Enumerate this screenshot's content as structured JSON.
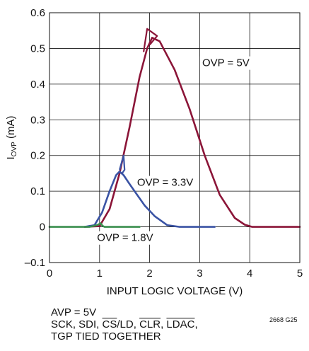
{
  "chart_data": {
    "type": "line",
    "title": "",
    "xlabel": "INPUT LOGIC VOLTAGE (V)",
    "ylabel_main": "I",
    "ylabel_sub": "OVP",
    "ylabel_unit": " (mA)",
    "xlim": [
      0,
      5
    ],
    "ylim": [
      -0.1,
      0.6
    ],
    "x_ticks": [
      0,
      1,
      2,
      3,
      4,
      5
    ],
    "y_ticks": [
      -0.1,
      0,
      0.1,
      0.2,
      0.3,
      0.4,
      0.5,
      0.6
    ],
    "x_tick_labels": [
      "0",
      "1",
      "2",
      "3",
      "4",
      "5"
    ],
    "y_tick_labels": [
      "–0.1",
      "0",
      "0.1",
      "0.2",
      "0.3",
      "0.4",
      "0.5",
      "0.6"
    ],
    "grid": true,
    "series": [
      {
        "name": "OVP = 5V",
        "color": "#8b1538",
        "x": [
          0.7,
          1.0,
          1.2,
          1.4,
          1.6,
          1.8,
          1.95,
          2.05,
          2.2,
          2.5,
          2.8,
          3.1,
          3.4,
          3.7,
          3.9,
          4.05,
          4.2,
          4.5,
          5.0
        ],
        "y": [
          0,
          0.002,
          0.05,
          0.15,
          0.28,
          0.42,
          0.5,
          0.53,
          0.52,
          0.44,
          0.33,
          0.2,
          0.09,
          0.025,
          0.006,
          0.0,
          0.0,
          0.0,
          0.0
        ],
        "spike": {
          "x": [
            1.88,
            1.95,
            2.15,
            2.0
          ],
          "y": [
            0.49,
            0.555,
            0.535,
            0.51
          ]
        }
      },
      {
        "name": "OVP = 3.3V",
        "color": "#3a53a4",
        "x": [
          0.7,
          0.9,
          1.05,
          1.2,
          1.33,
          1.4,
          1.48,
          1.6,
          1.75,
          1.9,
          2.1,
          2.35,
          2.6,
          3.0,
          3.3
        ],
        "y": [
          0,
          0.005,
          0.04,
          0.1,
          0.145,
          0.155,
          0.145,
          0.12,
          0.09,
          0.06,
          0.03,
          0.005,
          0.0,
          0.0,
          0.0
        ],
        "spike": {
          "x": [
            1.4,
            1.48,
            1.5,
            1.45
          ],
          "y": [
            0.16,
            0.2,
            0.16,
            0.15
          ]
        }
      },
      {
        "name": "OVP = 1.8V",
        "color": "#3a8f4f",
        "x": [
          0,
          0.5,
          0.8,
          0.95,
          1.02,
          1.06,
          1.1,
          1.3,
          1.8
        ],
        "y": [
          0,
          0,
          0.0,
          0.005,
          0.01,
          0.003,
          0.0,
          0.0,
          0.0
        ]
      }
    ],
    "annotations": [
      {
        "text": "OVP = 5V",
        "x": 3.05,
        "y": 0.45
      },
      {
        "text": "OVP = 3.3V",
        "x": 1.75,
        "y": 0.115
      },
      {
        "text": "OVP = 1.8V",
        "x": 0.95,
        "y": -0.04
      }
    ]
  },
  "notes": {
    "line1": "AVP = 5V",
    "line2_a": "SCK, SDI, ",
    "line2_b": "CS",
    "line2_c": "/LD, ",
    "line2_d": "CLR",
    "line2_e": ", ",
    "line2_f": "LDAC",
    "line2_g": ",",
    "line3": "TGP TIED TOGETHER",
    "figure_id": "2668 G25"
  }
}
